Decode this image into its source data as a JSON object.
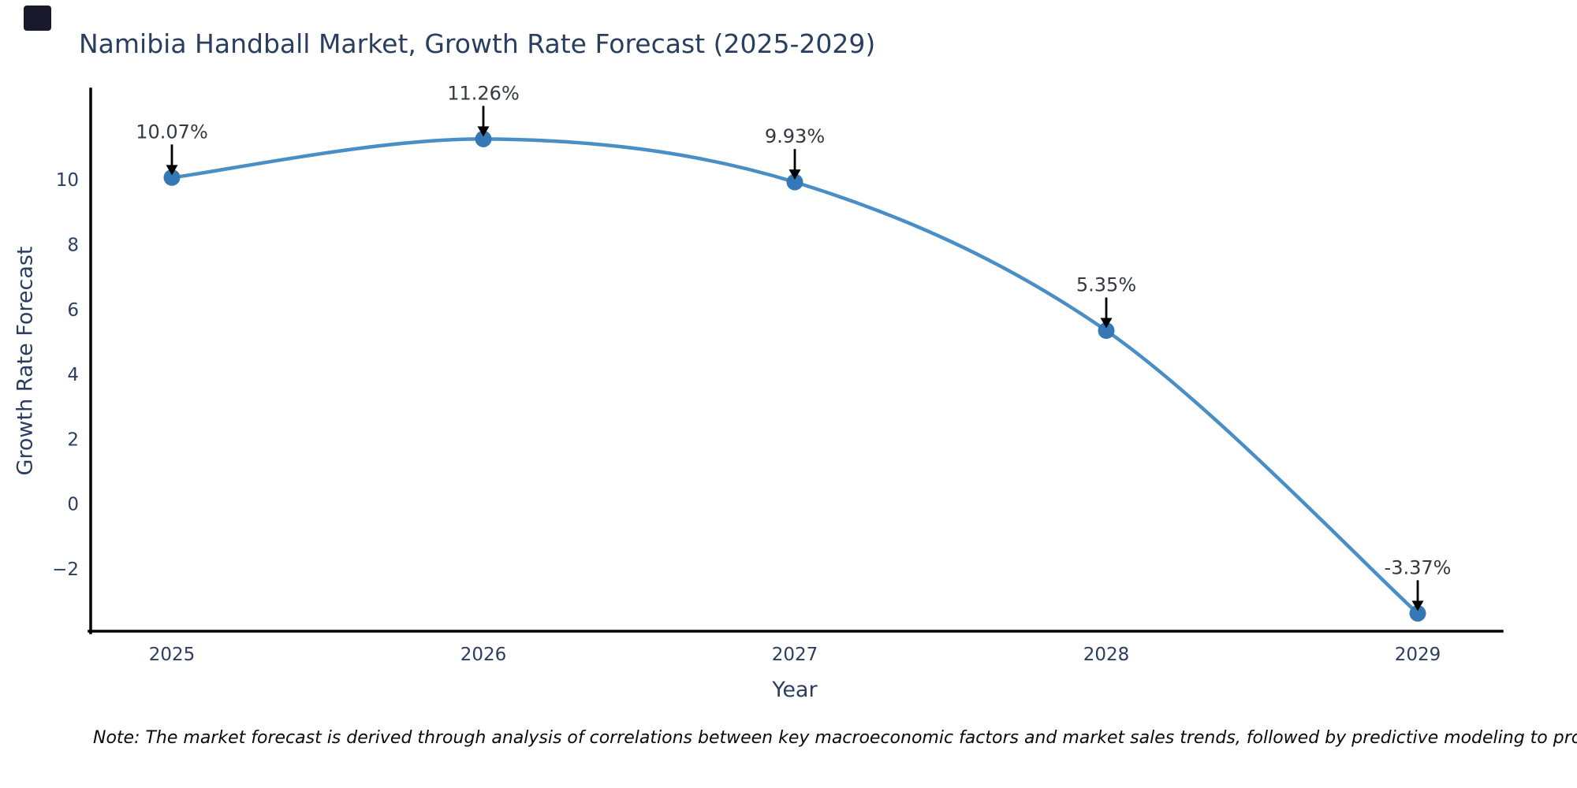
{
  "header": {
    "title": "Namibia Handball Market, Growth Rate Forecast (2025-2029)"
  },
  "footnote": "Note: The market forecast is derived through analysis of correlations between key macroeconomic factors and market sales trends, followed by predictive modeling to project future sales",
  "brand_mark_color": "#181a2c",
  "chart_data": {
    "type": "line",
    "line_shape": "spline",
    "title": "Namibia Handball Market, Growth Rate Forecast (2025-2029)",
    "xlabel": "Year",
    "ylabel": "Growth Rate Forecast",
    "categories": [
      "2025",
      "2026",
      "2027",
      "2028",
      "2029"
    ],
    "values": [
      10.07,
      11.26,
      9.93,
      5.35,
      -3.37
    ],
    "point_labels": [
      "10.07%",
      "11.26%",
      "9.93%",
      "5.35%",
      "-3.37%"
    ],
    "yticks": [
      10,
      8,
      6,
      4,
      2,
      0,
      -2
    ],
    "ylim": [
      -3.92,
      12.8
    ],
    "grid": false,
    "legend_position": "none",
    "colors": {
      "line": "#4a8ec6",
      "marker": "#3578b5",
      "axis_line": "#000000",
      "tick_text": "#2a3f5f",
      "annotation_text": "#333940",
      "annotation_arrow": "#000000",
      "title_text": "#2a3f5f"
    }
  }
}
